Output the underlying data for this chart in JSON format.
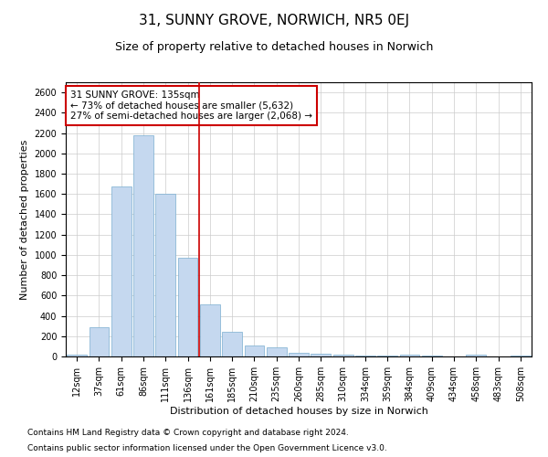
{
  "title": "31, SUNNY GROVE, NORWICH, NR5 0EJ",
  "subtitle": "Size of property relative to detached houses in Norwich",
  "xlabel": "Distribution of detached houses by size in Norwich",
  "ylabel": "Number of detached properties",
  "footnote1": "Contains HM Land Registry data © Crown copyright and database right 2024.",
  "footnote2": "Contains public sector information licensed under the Open Government Licence v3.0.",
  "annotation_line1": "31 SUNNY GROVE: 135sqm",
  "annotation_line2": "← 73% of detached houses are smaller (5,632)",
  "annotation_line3": "27% of semi-detached houses are larger (2,068) →",
  "bar_labels": [
    "12sqm",
    "37sqm",
    "61sqm",
    "86sqm",
    "111sqm",
    "136sqm",
    "161sqm",
    "185sqm",
    "210sqm",
    "235sqm",
    "260sqm",
    "285sqm",
    "310sqm",
    "334sqm",
    "359sqm",
    "384sqm",
    "409sqm",
    "434sqm",
    "458sqm",
    "483sqm",
    "508sqm"
  ],
  "bar_values": [
    20,
    290,
    1670,
    2180,
    1600,
    970,
    510,
    240,
    110,
    90,
    35,
    30,
    20,
    10,
    5,
    15,
    5,
    2,
    15,
    2,
    10
  ],
  "bar_color": "#c5d8ef",
  "bar_edge_color": "#7aaed0",
  "vline_color": "#cc0000",
  "vline_position": 5.5,
  "annotation_box_color": "#cc0000",
  "ylim": [
    0,
    2700
  ],
  "yticks": [
    0,
    200,
    400,
    600,
    800,
    1000,
    1200,
    1400,
    1600,
    1800,
    2000,
    2200,
    2400,
    2600
  ],
  "grid_color": "#cccccc",
  "background_color": "#ffffff",
  "title_fontsize": 11,
  "subtitle_fontsize": 9,
  "axis_label_fontsize": 8,
  "tick_fontsize": 7,
  "annotation_fontsize": 7.5,
  "footnote_fontsize": 6.5
}
